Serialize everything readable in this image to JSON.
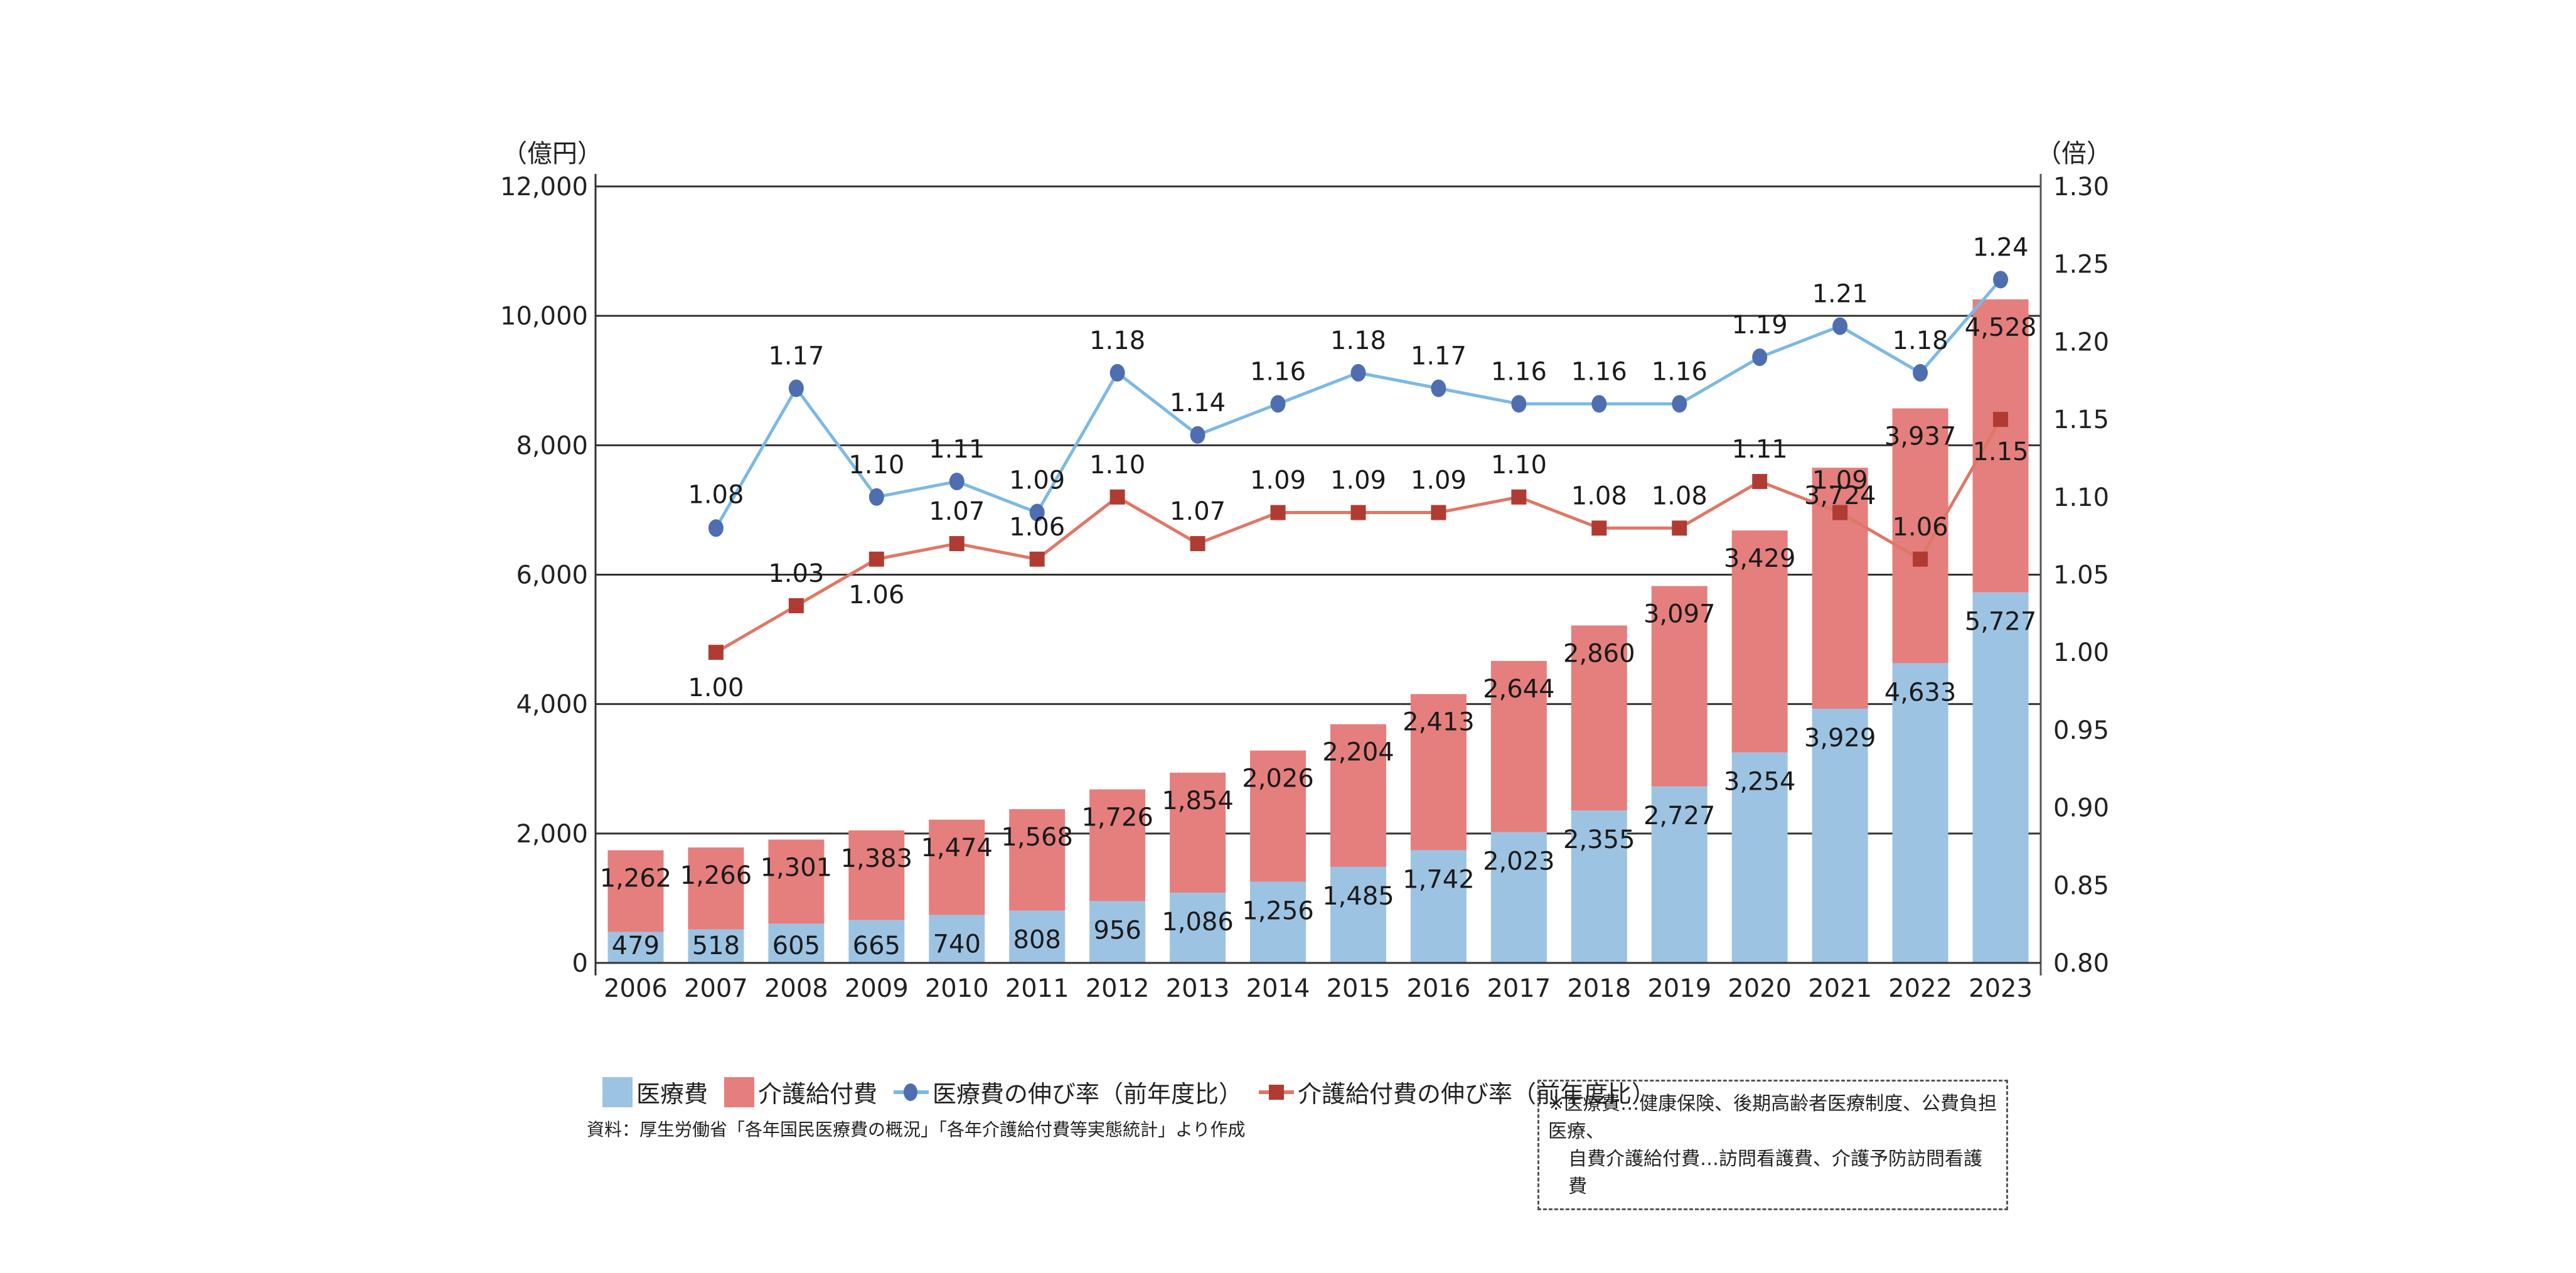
{
  "chart_data": {
    "type": "bar",
    "subtype": "stacked-bar-with-dual-axis-lines",
    "categories": [
      "2006",
      "2007",
      "2008",
      "2009",
      "2010",
      "2011",
      "2012",
      "2013",
      "2014",
      "2015",
      "2016",
      "2017",
      "2018",
      "2019",
      "2020",
      "2021",
      "2022",
      "2023"
    ],
    "series": [
      {
        "name": "医療費",
        "type": "bar",
        "axis": "left",
        "color": "#9DC3E3",
        "values": [
          479,
          518,
          605,
          665,
          740,
          808,
          956,
          1086,
          1256,
          1485,
          1742,
          2023,
          2355,
          2727,
          3254,
          3929,
          4633,
          5727
        ],
        "labels": [
          "479",
          "518",
          "605",
          "665",
          "740",
          "808",
          "956",
          "1,086",
          "1,256",
          "1,485",
          "1,742",
          "2,023",
          "2,355",
          "2,727",
          "3,254",
          "3,929",
          "4,633",
          "5,727"
        ]
      },
      {
        "name": "介護給付費",
        "type": "bar",
        "axis": "left",
        "color": "#E47F7D",
        "values": [
          1262,
          1266,
          1301,
          1383,
          1474,
          1568,
          1726,
          1854,
          2026,
          2204,
          2413,
          2644,
          2860,
          3097,
          3429,
          3724,
          3937,
          4528
        ],
        "labels": [
          "1,262",
          "1,266",
          "1,301",
          "1,383",
          "1,474",
          "1,568",
          "1,726",
          "1,854",
          "2,026",
          "2,204",
          "2,413",
          "2,644",
          "2,860",
          "3,097",
          "3,429",
          "3,724",
          "3,937",
          "4,528"
        ]
      },
      {
        "name": "医療費の伸び率（前年度比）",
        "type": "line",
        "axis": "right",
        "line_color": "#7CB9E4",
        "marker_color": "#4F6EB0",
        "marker": "circle",
        "values": [
          null,
          1.08,
          1.17,
          1.1,
          1.11,
          1.09,
          1.18,
          1.14,
          1.16,
          1.18,
          1.17,
          1.16,
          1.16,
          1.16,
          1.19,
          1.21,
          1.18,
          1.24
        ],
        "labels": [
          "",
          "1.08",
          "1.17",
          "1.10",
          "1.11",
          "1.09",
          "1.18",
          "1.14",
          "1.16",
          "1.18",
          "1.17",
          "1.16",
          "1.16",
          "1.16",
          "1.19",
          "1.21",
          "1.18",
          "1.24"
        ]
      },
      {
        "name": "介護給付費の伸び率（前年度比）",
        "type": "line",
        "axis": "right",
        "line_color": "#E07766",
        "marker_color": "#B03B33",
        "marker": "square",
        "values": [
          null,
          1.0,
          1.03,
          1.06,
          1.07,
          1.06,
          1.1,
          1.07,
          1.09,
          1.09,
          1.09,
          1.1,
          1.08,
          1.08,
          1.11,
          1.09,
          1.06,
          1.15
        ],
        "labels": [
          "",
          "1.00",
          "1.03",
          "1.06",
          "1.07",
          "1.06",
          "1.10",
          "1.07",
          "1.09",
          "1.09",
          "1.09",
          "1.10",
          "1.08",
          "1.08",
          "1.11",
          "1.09",
          "1.06",
          "1.15"
        ]
      }
    ],
    "left_axis": {
      "unit": "（億円）",
      "range": [
        0,
        12000
      ],
      "ticks": [
        0,
        2000,
        4000,
        6000,
        8000,
        10000,
        12000
      ],
      "tick_labels": [
        "0",
        "2,000",
        "4,000",
        "6,000",
        "8,000",
        "10,000",
        "12,000"
      ]
    },
    "right_axis": {
      "unit": "（倍）",
      "range": [
        0.8,
        1.3
      ],
      "ticks": [
        0.8,
        0.85,
        0.9,
        0.95,
        1.0,
        1.05,
        1.1,
        1.15,
        1.2,
        1.25,
        1.3
      ],
      "tick_labels": [
        "0.80",
        "0.85",
        "0.90",
        "0.95",
        "1.00",
        "1.05",
        "1.10",
        "1.15",
        "1.20",
        "1.25",
        "1.30"
      ]
    },
    "grid": true,
    "legend_position": "bottom"
  },
  "legend": {
    "items": [
      "医療費",
      "介護給付費",
      "医療費の伸び率（前年度比）",
      "介護給付費の伸び率（前年度比）"
    ]
  },
  "source": "資料：厚生労働省「各年国民医療費の概況」「各年介護給付費等実態統計」より作成",
  "note": {
    "line1": "※医療費…健康保険、後期高齢者医療制度、公費負担医療、",
    "line2": "自費介護給付費…訪問看護費、介護予防訪問看護費"
  }
}
